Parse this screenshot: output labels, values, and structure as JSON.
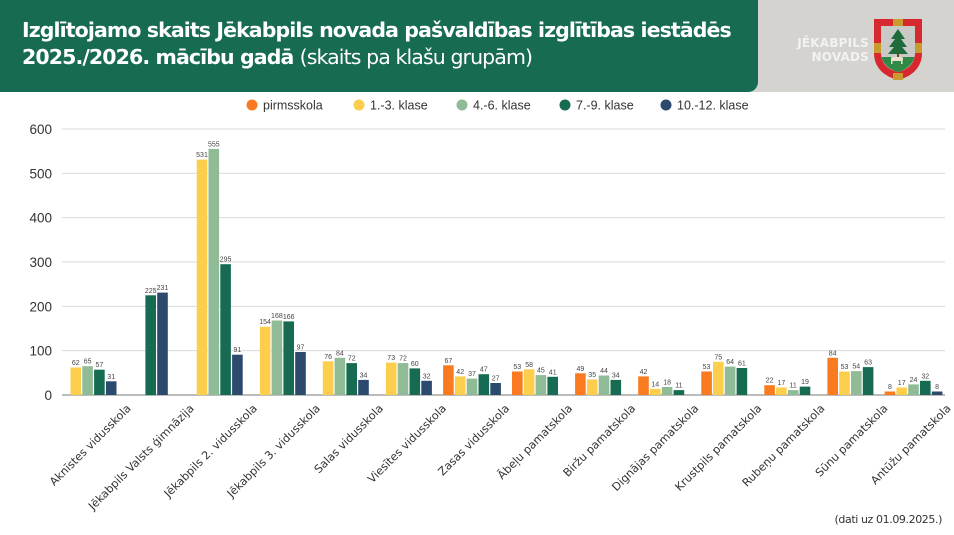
{
  "header": {
    "title_bold": "Izglītojamo skaits Jēkabpils novada pašvaldības izglītības iestādēs 2025./2026. mācību gadā",
    "title_normal": "(skaits pa klašu grupām)",
    "brand_line1": "JĒKABPILS",
    "brand_line2": "NOVADS",
    "crest_icon": "jekabpils-coat-of-arms-icon",
    "colors": {
      "header_green": "#176b53",
      "header_gray": "#d4d3cf"
    }
  },
  "footer": {
    "note": "(dati uz 01.09.2025.)"
  },
  "chart_data": {
    "type": "bar",
    "title": "Izglītojamo skaits Jēkabpils novada pašvaldības izglītības iestādēs 2025./2026. mācību gadā (skaits pa klašu grupām)",
    "xlabel": "",
    "ylabel": "",
    "ylim": [
      0,
      600
    ],
    "yticks": [
      0,
      100,
      200,
      300,
      400,
      500,
      600
    ],
    "grid": true,
    "legend_position": "top",
    "categories": [
      "Aknīstes vidusskola",
      "Jēkabpils Valsts ģimnāzija",
      "Jēkabpils 2. vidusskola",
      "Jēkabpils 3. vidusskola",
      "Salas vidusskola",
      "Viesītes vidusskola",
      "Zasas vidusskola",
      "Ābeļu pamatskola",
      "Biržu pamatskola",
      "Dignājas pamatskola",
      "Krustpils pamatskola",
      "Rubeņu pamatskola",
      "Sūnu pamatskola",
      "Antūžu pamatskola"
    ],
    "series": [
      {
        "name": "pirmsskola",
        "color": "#f97a1f",
        "values": [
          null,
          null,
          null,
          null,
          null,
          null,
          67,
          53,
          49,
          42,
          53,
          22,
          84,
          8
        ]
      },
      {
        "name": "1.-3. klase",
        "color": "#fdcd4c",
        "values": [
          62,
          null,
          531,
          154,
          76,
          73,
          42,
          58,
          35,
          14,
          75,
          17,
          53,
          17
        ]
      },
      {
        "name": "4.-6. klase",
        "color": "#8fbb96",
        "values": [
          65,
          null,
          555,
          168,
          84,
          72,
          37,
          45,
          44,
          18,
          64,
          11,
          54,
          24
        ]
      },
      {
        "name": "7.-9. klase",
        "color": "#176b53",
        "values": [
          57,
          225,
          295,
          166,
          72,
          60,
          47,
          41,
          34,
          11,
          61,
          19,
          63,
          32
        ]
      },
      {
        "name": "10.-12. klase",
        "color": "#2c4a6e",
        "values": [
          31,
          231,
          91,
          97,
          34,
          32,
          27,
          null,
          null,
          null,
          null,
          null,
          null,
          8
        ]
      }
    ]
  }
}
